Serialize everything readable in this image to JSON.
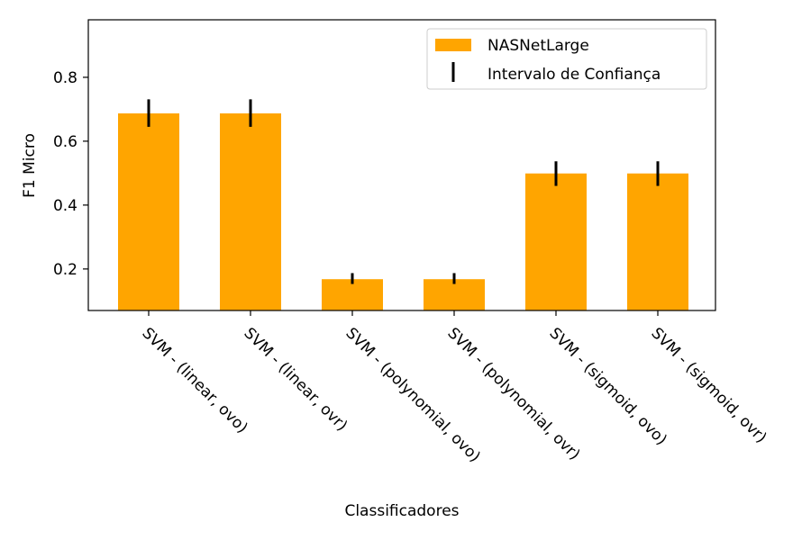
{
  "chart_data": {
    "type": "bar",
    "title": "",
    "xlabel": "Classificadores",
    "ylabel": "F1 Micro",
    "categories": [
      "SVM - (linear, ovo)",
      "SVM - (linear, ovr)",
      "SVM - (polynomial, ovo)",
      "SVM - (polynomial, ovr)",
      "SVM - (sigmoid, ovo)",
      "SVM - (sigmoid, ovr)"
    ],
    "series": [
      {
        "name": "NASNetLarge",
        "color": "#ffa500",
        "values": [
          0.687,
          0.687,
          0.168,
          0.168,
          0.499,
          0.499
        ],
        "ci_low": [
          0.645,
          0.645,
          0.153,
          0.153,
          0.46,
          0.46
        ],
        "ci_high": [
          0.731,
          0.731,
          0.187,
          0.187,
          0.537,
          0.537
        ]
      }
    ],
    "errorbar_label": "Intervalo de Confiança",
    "errorbar_color": "#000000",
    "ylim": [
      0.07,
      0.98
    ],
    "yticks": [
      0.2,
      0.4,
      0.6,
      0.8
    ],
    "ytick_labels": [
      "0.2",
      "0.4",
      "0.6",
      "0.8"
    ],
    "xtick_rotation": -45,
    "grid": false,
    "legend_position": "top-right"
  }
}
